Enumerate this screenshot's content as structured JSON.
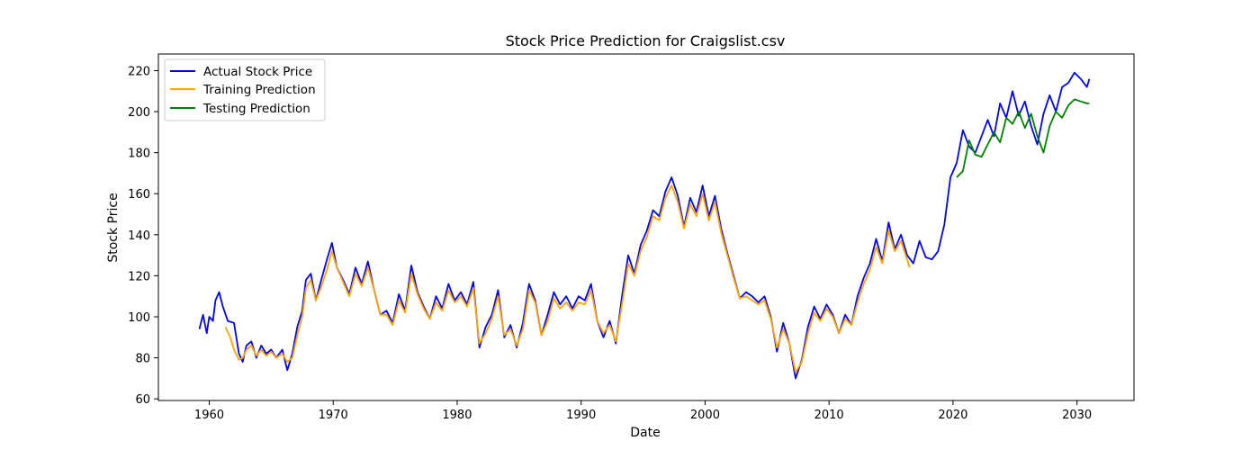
{
  "chart_data": {
    "type": "line",
    "title": "Stock Price Prediction for Craigslist.csv",
    "xlabel": "Date",
    "ylabel": "Stock Price",
    "xlim": [
      1955.9,
      2034.6
    ],
    "ylim": [
      59.2,
      228.1
    ],
    "xticks": [
      1960,
      1970,
      1980,
      1990,
      2000,
      2010,
      2020,
      2030
    ],
    "yticks": [
      60,
      80,
      100,
      120,
      140,
      160,
      180,
      200,
      220
    ],
    "legend_position": "top-left",
    "grid": false,
    "series": [
      {
        "name": "Actual Stock Price",
        "color": "#0000ff",
        "x": [
          1959.2,
          1959.5,
          1959.8,
          1960.0,
          1960.3,
          1960.5,
          1960.8,
          1961.1,
          1961.5,
          1962.0,
          1962.4,
          1962.7,
          1963.0,
          1963.4,
          1963.8,
          1964.2,
          1964.6,
          1965.0,
          1965.4,
          1965.9,
          1966.3,
          1966.7,
          1967.1,
          1967.5,
          1967.8,
          1968.2,
          1968.6,
          1969.0,
          1969.5,
          1969.9,
          1970.3,
          1970.8,
          1971.3,
          1971.8,
          1972.3,
          1972.8,
          1973.3,
          1973.8,
          1974.3,
          1974.8,
          1975.3,
          1975.8,
          1976.3,
          1976.8,
          1977.3,
          1977.8,
          1978.3,
          1978.8,
          1979.3,
          1979.8,
          1980.3,
          1980.8,
          1981.3,
          1981.8,
          1982.3,
          1982.8,
          1983.3,
          1983.8,
          1984.3,
          1984.8,
          1985.3,
          1985.8,
          1986.3,
          1986.8,
          1987.3,
          1987.8,
          1988.3,
          1988.8,
          1989.3,
          1989.8,
          1990.3,
          1990.8,
          1991.3,
          1991.8,
          1992.3,
          1992.8,
          1993.3,
          1993.8,
          1994.3,
          1994.8,
          1995.3,
          1995.8,
          1996.3,
          1996.8,
          1997.3,
          1997.8,
          1998.3,
          1998.8,
          1999.3,
          1999.8,
          2000.3,
          2000.8,
          2001.3,
          2001.8,
          2002.3,
          2002.8,
          2003.3,
          2003.8,
          2004.3,
          2004.8,
          2005.3,
          2005.8,
          2006.3,
          2006.8,
          2007.3,
          2007.8,
          2008.3,
          2008.8,
          2009.3,
          2009.8,
          2010.3,
          2010.8,
          2011.3,
          2011.8,
          2012.3,
          2012.8,
          2013.3,
          2013.8,
          2014.3,
          2014.8,
          2015.3,
          2015.8,
          2016.3,
          2016.8,
          2017.3,
          2017.8,
          2018.3,
          2018.8,
          2019.3,
          2019.8,
          2020.3,
          2020.8,
          2021.3,
          2021.8,
          2022.3,
          2022.8,
          2023.3,
          2023.8,
          2024.3,
          2024.8,
          2025.3,
          2025.8,
          2026.3,
          2026.8,
          2027.3,
          2027.8,
          2028.3,
          2028.8,
          2029.3,
          2029.8,
          2030.3,
          2030.8,
          2031.0
        ],
        "y": [
          94,
          101,
          92,
          100,
          98,
          108,
          112,
          105,
          98,
          97,
          82,
          78,
          86,
          88,
          80,
          86,
          82,
          84,
          80,
          84,
          74,
          82,
          95,
          103,
          118,
          121,
          108,
          117,
          128,
          136,
          124,
          118,
          111,
          124,
          116,
          127,
          113,
          101,
          103,
          97,
          111,
          103,
          125,
          112,
          105,
          99,
          110,
          104,
          116,
          108,
          112,
          106,
          117,
          85,
          95,
          101,
          113,
          90,
          96,
          85,
          97,
          116,
          108,
          91,
          101,
          112,
          106,
          110,
          104,
          110,
          108,
          116,
          98,
          90,
          98,
          87,
          110,
          130,
          121,
          135,
          142,
          152,
          149,
          161,
          168,
          159,
          144,
          158,
          151,
          164,
          149,
          159,
          143,
          131,
          120,
          109,
          112,
          110,
          107,
          110,
          100,
          83,
          97,
          87,
          70,
          79,
          95,
          105,
          99,
          106,
          101,
          92,
          101,
          96,
          110,
          119,
          126,
          138,
          127,
          146,
          133,
          140,
          130,
          126,
          137,
          129,
          128,
          132,
          145,
          168,
          175,
          191,
          183,
          180,
          188,
          196,
          188,
          204,
          197,
          210,
          198,
          205,
          193,
          184,
          199,
          208,
          200,
          212,
          214,
          219,
          216,
          212,
          216
        ]
      },
      {
        "name": "Training Prediction",
        "color": "#ffa500",
        "x": [
          1961.3,
          1961.7,
          1962.0,
          1962.4,
          1962.7,
          1963.0,
          1963.4,
          1963.8,
          1964.2,
          1964.6,
          1965.0,
          1965.4,
          1965.9,
          1966.3,
          1966.7,
          1967.1,
          1967.5,
          1967.8,
          1968.2,
          1968.6,
          1969.0,
          1969.5,
          1969.9,
          1970.3,
          1970.8,
          1971.3,
          1971.8,
          1972.3,
          1972.8,
          1973.3,
          1973.8,
          1974.3,
          1974.8,
          1975.3,
          1975.8,
          1976.3,
          1976.8,
          1977.3,
          1977.8,
          1978.3,
          1978.8,
          1979.3,
          1979.8,
          1980.3,
          1980.8,
          1981.3,
          1981.8,
          1982.3,
          1982.8,
          1983.3,
          1983.8,
          1984.3,
          1984.8,
          1985.3,
          1985.8,
          1986.3,
          1986.8,
          1987.3,
          1987.8,
          1988.3,
          1988.8,
          1989.3,
          1989.8,
          1990.3,
          1990.8,
          1991.3,
          1991.8,
          1992.3,
          1992.8,
          1993.3,
          1993.8,
          1994.3,
          1994.8,
          1995.3,
          1995.8,
          1996.3,
          1996.8,
          1997.3,
          1997.8,
          1998.3,
          1998.8,
          1999.3,
          1999.8,
          2000.3,
          2000.8,
          2001.3,
          2001.8,
          2002.3,
          2002.8,
          2003.3,
          2003.8,
          2004.3,
          2004.8,
          2005.3,
          2005.8,
          2006.3,
          2006.8,
          2007.3,
          2007.8,
          2008.3,
          2008.8,
          2009.3,
          2009.8,
          2010.3,
          2010.8,
          2011.3,
          2011.8,
          2012.3,
          2012.8,
          2013.3,
          2013.8,
          2014.3,
          2014.8,
          2015.3,
          2015.8,
          2016.3,
          2016.5
        ],
        "y": [
          95,
          90,
          84,
          79,
          80,
          84,
          86,
          81,
          84,
          81,
          83,
          80,
          82,
          78,
          80,
          91,
          100,
          114,
          118,
          108,
          114,
          123,
          132,
          124,
          117,
          110,
          121,
          115,
          124,
          113,
          101,
          101,
          96,
          108,
          102,
          121,
          111,
          104,
          99,
          107,
          103,
          113,
          107,
          110,
          105,
          114,
          87,
          92,
          99,
          110,
          91,
          94,
          86,
          94,
          113,
          107,
          91,
          98,
          109,
          104,
          107,
          103,
          107,
          106,
          113,
          98,
          92,
          96,
          88,
          106,
          126,
          120,
          132,
          139,
          149,
          147,
          158,
          164,
          156,
          143,
          155,
          149,
          160,
          147,
          156,
          141,
          130,
          119,
          109,
          110,
          108,
          106,
          108,
          99,
          85,
          94,
          87,
          73,
          78,
          92,
          102,
          98,
          104,
          100,
          92,
          99,
          96,
          107,
          116,
          123,
          134,
          126,
          142,
          132,
          137,
          128,
          124
        ]
      },
      {
        "name": "Testing Prediction",
        "color": "#008000",
        "x": [
          2020.3,
          2020.8,
          2021.3,
          2021.8,
          2022.3,
          2022.8,
          2023.3,
          2023.8,
          2024.3,
          2024.8,
          2025.3,
          2025.8,
          2026.3,
          2026.8,
          2027.3,
          2027.8,
          2028.3,
          2028.8,
          2029.3,
          2029.8,
          2030.3,
          2030.8,
          2031.0
        ],
        "y": [
          168,
          171,
          186,
          179,
          178,
          184,
          190,
          185,
          197,
          194,
          200,
          192,
          199,
          188,
          180,
          193,
          200,
          197,
          203,
          206,
          205,
          204,
          204
        ]
      }
    ]
  }
}
